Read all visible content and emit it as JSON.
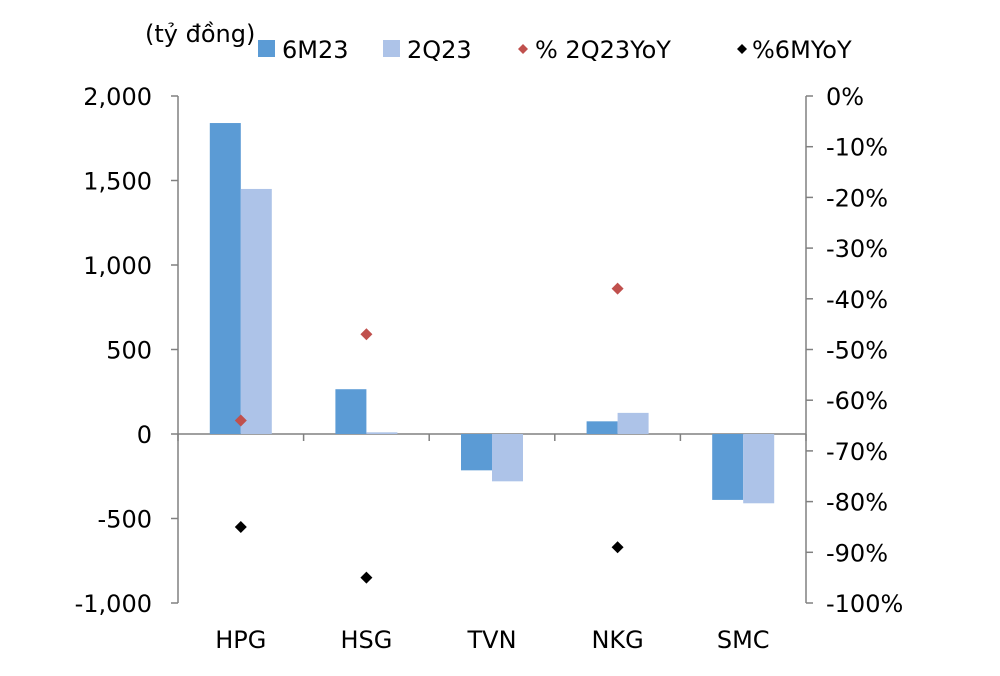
{
  "chart_data": {
    "type": "bar",
    "unit_label": "(tỷ đồng)",
    "categories": [
      "HPG",
      "HSG",
      "TVN",
      "NKG",
      "SMC"
    ],
    "series": [
      {
        "name": "6M23",
        "kind": "bar",
        "axis": "left",
        "color": "#5b9bd5",
        "values": [
          1840,
          265,
          -215,
          75,
          -390
        ]
      },
      {
        "name": "2Q23",
        "kind": "bar",
        "axis": "left",
        "color": "#adc3e8",
        "values": [
          1450,
          10,
          -280,
          125,
          -410
        ]
      },
      {
        "name": "% 2Q23YoY",
        "kind": "scatter",
        "marker": "diamond",
        "axis": "right",
        "color": "#c0504d",
        "values": [
          -64,
          -47,
          null,
          -38,
          null
        ]
      },
      {
        "name": "%6MYoY",
        "kind": "scatter",
        "marker": "diamond",
        "axis": "right",
        "color": "#000000",
        "values": [
          -85,
          -95,
          null,
          -89,
          null
        ]
      }
    ],
    "y_left": {
      "min": -1000,
      "max": 2000,
      "step": 500,
      "tick_labels": [
        "-1,000",
        "-500",
        "0",
        "500",
        "1,000",
        "1,500",
        "2,000"
      ]
    },
    "y_right": {
      "min": -100,
      "max": 0,
      "step": 10,
      "tick_labels": [
        "-100%",
        "-90%",
        "-80%",
        "-70%",
        "-60%",
        "-50%",
        "-40%",
        "-30%",
        "-20%",
        "-10%",
        "0%"
      ]
    },
    "grid": false,
    "legend_position": "top"
  }
}
